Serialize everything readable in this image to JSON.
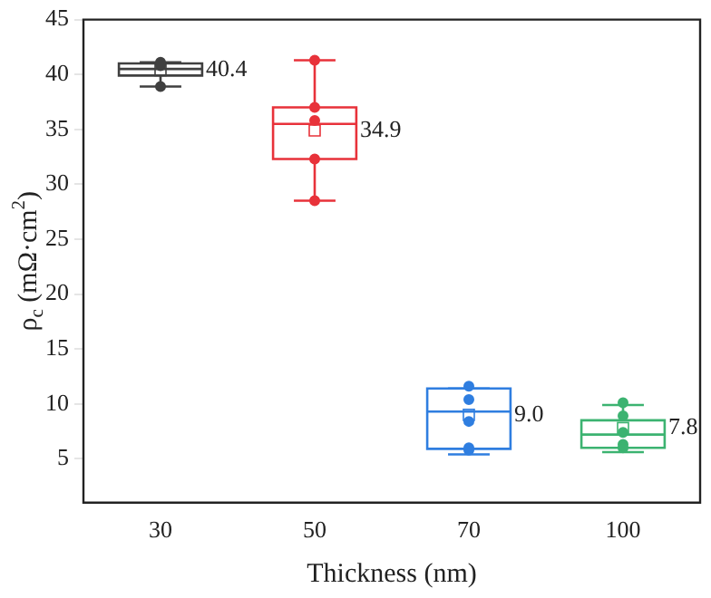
{
  "chart_data": {
    "type": "box",
    "xlabel": "Thickness (nm)",
    "ylabel": "ρ$_{c}$ (mΩ·cm$^{2}$)",
    "categories": [
      "30",
      "50",
      "70",
      "100"
    ],
    "colors": [
      "#404040",
      "#e8323a",
      "#2f7ee0",
      "#3cb371"
    ],
    "boxes": [
      {
        "low": 38.9,
        "q1": 39.9,
        "median": 40.5,
        "q3": 41.0,
        "high": 41.1,
        "mean": 40.4
      },
      {
        "low": 28.5,
        "q1": 32.3,
        "median": 35.5,
        "q3": 37.0,
        "high": 41.3,
        "mean": 34.9
      },
      {
        "low": 5.4,
        "q1": 5.9,
        "median": 9.3,
        "q3": 11.4,
        "high": 11.4,
        "mean": 9.0
      },
      {
        "low": 5.6,
        "q1": 6.0,
        "median": 7.2,
        "q3": 8.5,
        "high": 9.9,
        "mean": 7.8
      }
    ],
    "series": [
      {
        "type": "scatter",
        "color": "#404040",
        "x": [
          "30",
          "30",
          "30"
        ],
        "values": [
          41.1,
          40.8,
          38.9
        ]
      },
      {
        "type": "scatter",
        "color": "#e8323a",
        "x": [
          "50",
          "50",
          "50",
          "50",
          "50"
        ],
        "values": [
          41.3,
          37.0,
          35.8,
          32.3,
          28.5
        ]
      },
      {
        "type": "scatter",
        "color": "#2f7ee0",
        "x": [
          "70",
          "70",
          "70",
          "70",
          "70"
        ],
        "values": [
          11.6,
          10.4,
          8.4,
          6.0,
          5.8
        ]
      },
      {
        "type": "scatter",
        "color": "#3cb371",
        "x": [
          "100",
          "100",
          "100",
          "100",
          "100"
        ],
        "values": [
          10.1,
          8.9,
          7.4,
          6.3,
          6.0
        ]
      }
    ],
    "annotations": [
      {
        "text": "40.4",
        "x": "30",
        "y": 40.4
      },
      {
        "text": "34.9",
        "x": "50",
        "y": 34.9
      },
      {
        "text": "9.0",
        "x": "70",
        "y": 9.0
      },
      {
        "text": "7.8",
        "x": "100",
        "y": 7.8
      }
    ],
    "ylim": [
      1,
      45
    ],
    "yticks": [
      5,
      10,
      15,
      20,
      25,
      30,
      35,
      40,
      45
    ],
    "grid": false,
    "legend": false,
    "marker": "circle"
  }
}
